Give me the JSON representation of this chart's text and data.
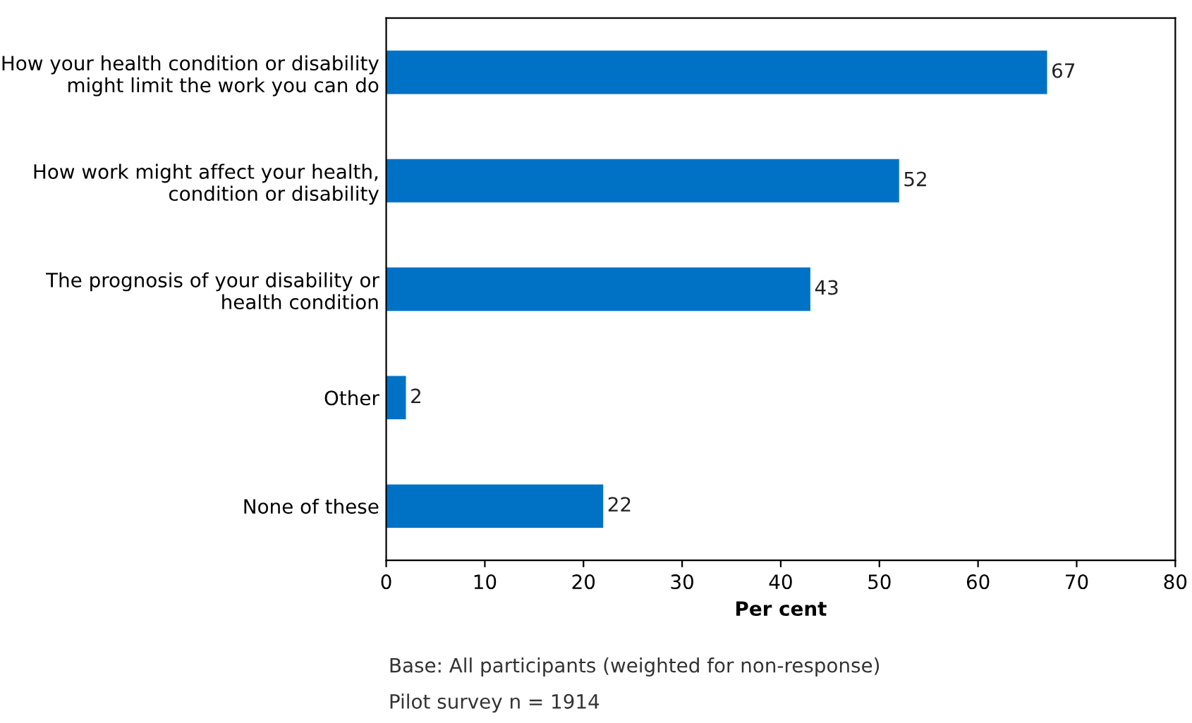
{
  "chart_data": {
    "type": "bar",
    "orientation": "horizontal",
    "xlabel": "Per cent",
    "categories": [
      "How your health condition or disability\nmight limit the work you can do",
      "How work might affect your health,\ncondition or disability",
      "The prognosis of your disability or\nhealth condition",
      "Other",
      "None of these"
    ],
    "values": [
      67,
      52,
      43,
      2,
      22
    ],
    "color": "#0072c6",
    "data_labels": true,
    "xlim": [
      0,
      80
    ],
    "xticks": [
      0,
      10,
      20,
      30,
      40,
      50,
      60,
      70,
      80
    ],
    "grid": false,
    "legend": false,
    "annotations": [
      "Base: All participants (weighted for non-response)",
      "Pilot survey n = 1914"
    ]
  }
}
